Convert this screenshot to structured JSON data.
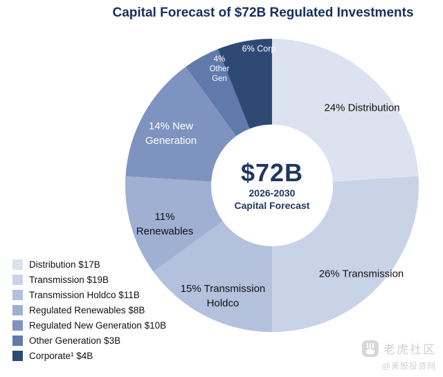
{
  "chart_data": {
    "type": "pie",
    "donut": true,
    "title": "Capital Forecast of $72B Regulated Investments",
    "center": {
      "value": "$72B",
      "subtitle1": "2026-2030",
      "subtitle2": "Capital Forecast"
    },
    "total_billions": 72,
    "legend_position": "bottom-left",
    "segments": [
      {
        "name": "Distribution",
        "pct": 24,
        "amount": "$17B",
        "label": "24% Distribution",
        "color": "#dce2ef",
        "label_color": "dark"
      },
      {
        "name": "Transmission",
        "pct": 26,
        "amount": "$19B",
        "label": "26% Transmission",
        "color": "#c9d3e8",
        "label_color": "dark"
      },
      {
        "name": "Transmission Holdco",
        "pct": 15,
        "amount": "$11B",
        "label": "15% Transmission\nHoldco",
        "color": "#b3c1dd",
        "label_color": "dark"
      },
      {
        "name": "Renewables",
        "pct": 11,
        "amount": "$8B",
        "label": "11%\nRenewables",
        "color": "#9fb0d3",
        "label_color": "dark"
      },
      {
        "name": "New Generation",
        "pct": 14,
        "amount": "$10B",
        "label": "14% New\nGeneration",
        "color": "#7e93c0",
        "label_color": "light"
      },
      {
        "name": "Other Generation",
        "pct": 4,
        "amount": "$3B",
        "label": "4%\nOther\nGen",
        "color": "#5f7aab",
        "label_color": "light"
      },
      {
        "name": "Corporate",
        "pct": 6,
        "amount": "$4B",
        "label": "6% Corp",
        "color": "#2e4a74",
        "label_color": "light"
      }
    ],
    "legend": [
      {
        "label": "Distribution $17B",
        "color": "#dce2ef"
      },
      {
        "label": "Transmission $19B",
        "color": "#c9d3e8"
      },
      {
        "label": "Transmission Holdco $11B",
        "color": "#b3c1dd"
      },
      {
        "label": "Regulated Renewables $8B",
        "color": "#9fb0d3"
      },
      {
        "label": "Regulated New Generation $10B",
        "color": "#7e93c0"
      },
      {
        "label": "Other Generation $3B",
        "color": "#5f7aab"
      },
      {
        "label": "Corporate¹ $4B",
        "color": "#2e4a74"
      }
    ]
  },
  "watermark": {
    "brand": "老虎社区",
    "handle": "@美股投资网"
  }
}
